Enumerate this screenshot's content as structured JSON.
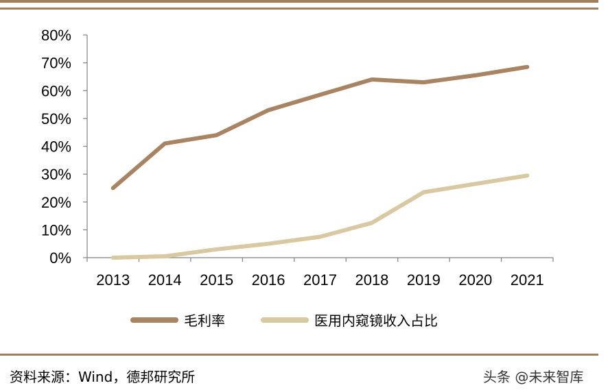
{
  "chart_data": {
    "type": "line",
    "categories": [
      "2013",
      "2014",
      "2015",
      "2016",
      "2017",
      "2018",
      "2019",
      "2020",
      "2021"
    ],
    "series": [
      {
        "name": "毛利率",
        "color": "#a88462",
        "values": [
          25,
          41,
          44,
          53,
          58.5,
          64,
          63,
          65.5,
          68.5
        ]
      },
      {
        "name": "医用内窥镜收入占比",
        "color": "#d9c9a2",
        "values": [
          0,
          0.5,
          3,
          5,
          7.5,
          12.5,
          23.5,
          26.5,
          29.5
        ]
      }
    ],
    "ylim": [
      0,
      80
    ],
    "yticks": [
      "0%",
      "10%",
      "20%",
      "30%",
      "40%",
      "50%",
      "60%",
      "70%",
      "80%"
    ],
    "legend_position": "bottom"
  },
  "source": "资料来源：Wind，德邦研究所",
  "watermark": "头条 @未来智库",
  "colors": {
    "rule": "#a27f5c"
  }
}
